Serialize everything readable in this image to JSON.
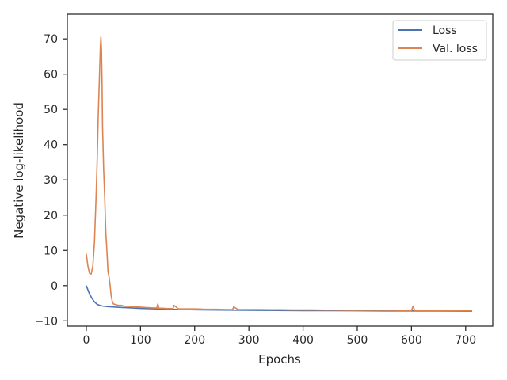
{
  "chart_data": {
    "type": "line",
    "title": "",
    "xlabel": "Epochs",
    "ylabel": "Negative log-likelihood",
    "xlim": [
      -35,
      750
    ],
    "ylim": [
      -11.5,
      77
    ],
    "xticks": [
      "0",
      "100",
      "200",
      "300",
      "400",
      "500",
      "600",
      "700"
    ],
    "yticks": [
      "−10",
      "0",
      "10",
      "20",
      "30",
      "40",
      "50",
      "60",
      "70"
    ],
    "xtick_values": [
      0,
      100,
      200,
      300,
      400,
      500,
      600,
      700
    ],
    "ytick_values": [
      -10,
      0,
      10,
      20,
      30,
      40,
      50,
      60,
      70
    ],
    "grid": false,
    "legend_position": "top-right",
    "series": [
      {
        "name": "Loss",
        "color": "#4c72b0",
        "x": [
          0,
          5,
          10,
          15,
          20,
          25,
          30,
          40,
          50,
          60,
          80,
          100,
          150,
          200,
          250,
          300,
          350,
          400,
          450,
          500,
          550,
          600,
          650,
          700,
          712
        ],
        "values": [
          0,
          -2,
          -3.5,
          -4.6,
          -5.3,
          -5.6,
          -5.8,
          -5.95,
          -6.05,
          -6.15,
          -6.3,
          -6.45,
          -6.7,
          -6.85,
          -6.95,
          -7.0,
          -7.05,
          -7.1,
          -7.12,
          -7.15,
          -7.18,
          -7.2,
          -7.22,
          -7.25,
          -7.26
        ]
      },
      {
        "name": "Val. loss",
        "color": "#dd8452",
        "x": [
          0,
          3,
          6,
          9,
          12,
          15,
          18,
          20,
          22,
          24,
          26,
          27,
          28,
          29,
          30,
          32,
          34,
          36,
          38,
          40,
          42,
          44,
          46,
          48,
          50,
          55,
          60,
          65,
          70,
          80,
          90,
          100,
          110,
          120,
          130,
          132,
          134,
          140,
          150,
          160,
          162,
          170,
          180,
          190,
          200,
          220,
          240,
          260,
          270,
          272,
          280,
          300,
          320,
          340,
          360,
          380,
          400,
          420,
          440,
          460,
          480,
          500,
          520,
          540,
          560,
          580,
          600,
          603,
          606,
          620,
          640,
          660,
          680,
          700,
          712
        ],
        "values": [
          9,
          5.5,
          3.5,
          3.3,
          5.5,
          12,
          25,
          35,
          48,
          58,
          68,
          70.5,
          67,
          58,
          45,
          33,
          25,
          15,
          10,
          4,
          2.5,
          0,
          -3,
          -4.5,
          -5.2,
          -5.4,
          -5.6,
          -5.6,
          -5.8,
          -5.9,
          -6.0,
          -6.1,
          -6.2,
          -6.3,
          -6.35,
          -5.2,
          -6.4,
          -6.4,
          -6.5,
          -6.5,
          -5.6,
          -6.6,
          -6.6,
          -6.6,
          -6.6,
          -6.7,
          -6.7,
          -6.8,
          -6.8,
          -6.0,
          -6.8,
          -6.8,
          -6.8,
          -6.85,
          -6.85,
          -6.9,
          -6.9,
          -6.9,
          -6.95,
          -6.95,
          -7.0,
          -7.0,
          -7.0,
          -7.0,
          -7.0,
          -7.05,
          -7.05,
          -5.8,
          -7.05,
          -7.05,
          -7.1,
          -7.1,
          -7.1,
          -7.1,
          -7.1
        ]
      }
    ]
  }
}
